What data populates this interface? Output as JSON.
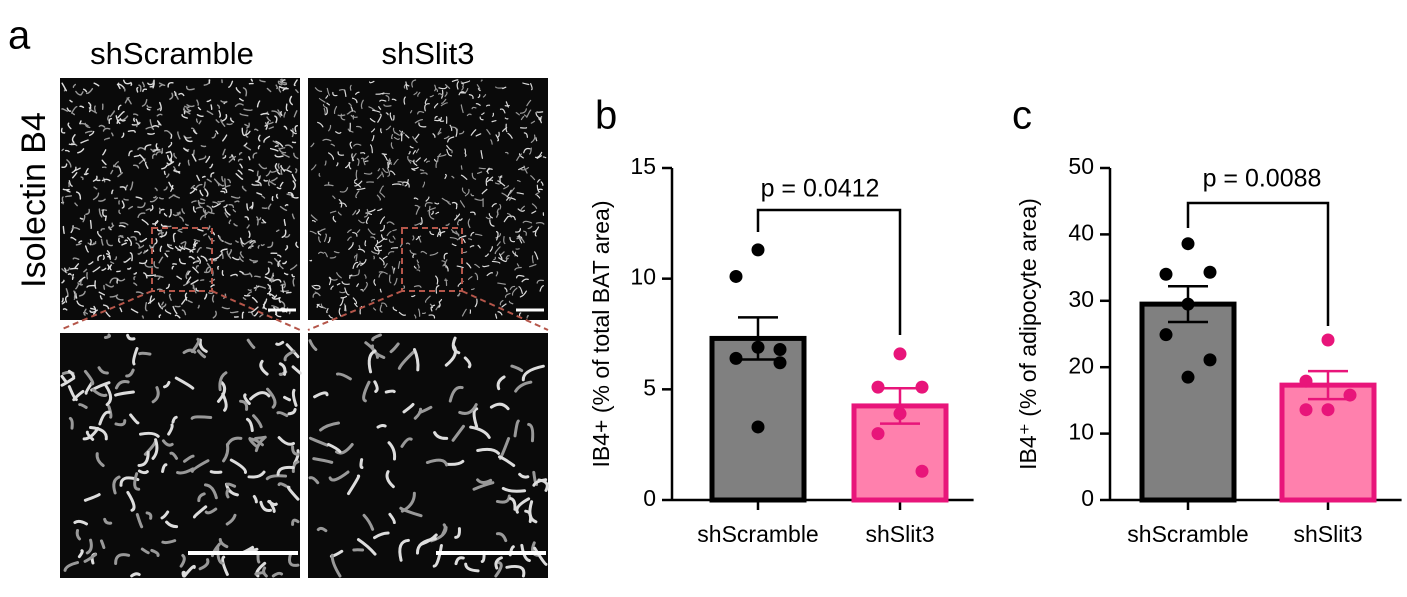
{
  "panel_a": {
    "panel_label": "a",
    "columns": [
      "shScramble",
      "shSlit3"
    ],
    "row_label": "Isolectin B4"
  },
  "chart_data": [
    {
      "type": "bar",
      "panel_label": "b",
      "ylabel": "IB4+ (% of total BAT area)",
      "annotation": "p = 0.0412",
      "categories": [
        "shScramble",
        "shSlit3"
      ],
      "values": [
        7.3,
        4.25
      ],
      "errors": [
        0.95,
        0.8
      ],
      "points": [
        [
          11.3,
          10.1,
          6.8,
          6.9,
          6.4,
          6.2,
          3.3
        ],
        [
          6.6,
          5.1,
          5.1,
          3.9,
          3.0,
          1.3
        ]
      ],
      "colors": [
        "#808080",
        "#ff80ad"
      ],
      "edge_colors": [
        "#000000",
        "#e8157a"
      ],
      "point_colors": [
        "#000000",
        "#e8157a"
      ],
      "ylim": [
        0,
        15
      ],
      "yticks": [
        0,
        5,
        10,
        15
      ]
    },
    {
      "type": "bar",
      "panel_label": "c",
      "ylabel": "IB4⁺ (% of adipocyte area)",
      "annotation": "p = 0.0088",
      "categories": [
        "shScramble",
        "shSlit3"
      ],
      "values": [
        29.5,
        17.3
      ],
      "errors": [
        2.7,
        2.1
      ],
      "points": [
        [
          38.6,
          34.0,
          34.3,
          29.5,
          24.9,
          21.1,
          18.5
        ],
        [
          24.1,
          17.9,
          15.8,
          13.6,
          13.6
        ]
      ],
      "colors": [
        "#808080",
        "#ff80ad"
      ],
      "edge_colors": [
        "#000000",
        "#e8157a"
      ],
      "point_colors": [
        "#000000",
        "#e8157a"
      ],
      "ylim": [
        0,
        50
      ],
      "yticks": [
        0,
        10,
        20,
        30,
        40,
        50
      ]
    }
  ]
}
